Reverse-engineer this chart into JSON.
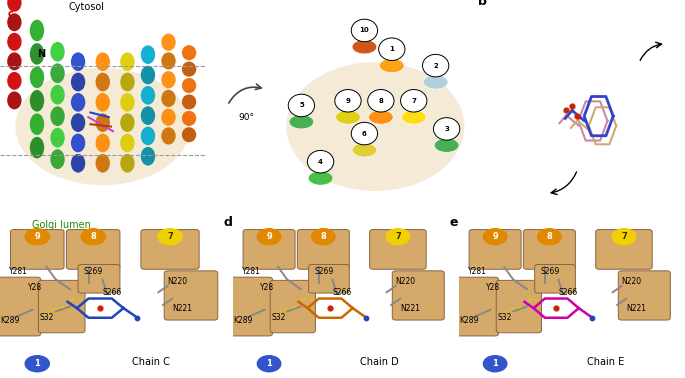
{
  "fig_width": 6.85,
  "fig_height": 3.78,
  "background_color": "#ffffff",
  "cytosol_text": "Cytosol",
  "golgi_text": "Golgi lumen",
  "rotation_text": "90°",
  "chain_c_text": "Chain C",
  "chain_d_text": "Chain D",
  "chain_e_text": "Chain E",
  "helix_tan": "#D4A96A",
  "helix_edge": "#8B6340",
  "ligand_blue": "#2244bb",
  "ligand_orange": "#cc6600",
  "ligand_magenta": "#cc00aa",
  "circle_blue": "#3355cc",
  "circle_orange": "#e08800",
  "circle_yellow": "#f0d000",
  "membrane_dash_color": "#999999",
  "stick_color": "#888888",
  "hbond_color": "#ddcc00",
  "label_fontsize": 5.5,
  "panel_label_fontsize": 9
}
